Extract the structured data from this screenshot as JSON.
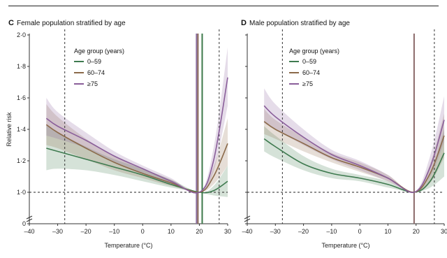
{
  "chart_data": [
    {
      "id": "C",
      "type": "line",
      "panel_letter": "C",
      "title": "Female population stratified by age",
      "xlabel": "Temperature (°C)",
      "ylabel": "Relative risk",
      "xlim": [
        -40,
        30
      ],
      "ylim": [
        0,
        2.0
      ],
      "xticks": [
        -40,
        -30,
        -20,
        -10,
        0,
        10,
        20,
        30
      ],
      "yticks": [
        0,
        1.0,
        1.2,
        1.4,
        1.6,
        1.8,
        2.0
      ],
      "ytick_labels": [
        "0",
        "1·0",
        "1·2",
        "1·4",
        "1·6",
        "1·8",
        "2·0"
      ],
      "axis_break": true,
      "reference_line_y": 1.0,
      "dashed_vlines": [
        -27.5,
        27
      ],
      "solid_vlines": [
        {
          "x": 19,
          "color": "#8a6ea0"
        },
        {
          "x": 19.5,
          "color": "#8b6a5a"
        },
        {
          "x": 21,
          "color": "#3d7a4a"
        }
      ],
      "legend": {
        "title": "Age group (years)",
        "position": "top-left"
      },
      "series": [
        {
          "name": "0–59",
          "color": "#3e7a4f",
          "x": [
            -34,
            -30,
            -20,
            -10,
            0,
            10,
            20,
            25,
            30
          ],
          "values": [
            1.28,
            1.26,
            1.21,
            1.16,
            1.11,
            1.05,
            1.0,
            1.01,
            1.07
          ],
          "lower": [
            1.14,
            1.15,
            1.14,
            1.11,
            1.07,
            1.03,
            1.0,
            0.98,
            0.97
          ],
          "upper": [
            1.43,
            1.38,
            1.29,
            1.21,
            1.15,
            1.08,
            1.0,
            1.04,
            1.17
          ]
        },
        {
          "name": "60–74",
          "color": "#8b6a4a",
          "x": [
            -34,
            -30,
            -20,
            -10,
            0,
            10,
            20,
            25,
            30
          ],
          "values": [
            1.43,
            1.38,
            1.28,
            1.19,
            1.12,
            1.06,
            1.0,
            1.1,
            1.31
          ],
          "lower": [
            1.3,
            1.28,
            1.21,
            1.14,
            1.09,
            1.04,
            1.0,
            1.05,
            1.17
          ],
          "upper": [
            1.56,
            1.48,
            1.34,
            1.23,
            1.15,
            1.08,
            1.0,
            1.16,
            1.47
          ]
        },
        {
          "name": "≥75",
          "color": "#8a5e9a",
          "x": [
            -34,
            -30,
            -20,
            -10,
            0,
            10,
            20,
            25,
            30
          ],
          "values": [
            1.47,
            1.42,
            1.33,
            1.23,
            1.15,
            1.07,
            1.0,
            1.2,
            1.73
          ],
          "lower": [
            1.36,
            1.34,
            1.28,
            1.19,
            1.12,
            1.05,
            1.0,
            1.13,
            1.55
          ],
          "upper": [
            1.6,
            1.51,
            1.38,
            1.26,
            1.17,
            1.09,
            1.0,
            1.28,
            1.92
          ]
        }
      ]
    },
    {
      "id": "D",
      "type": "line",
      "panel_letter": "D",
      "title": "Male population stratified by age",
      "xlabel": "Temperature (°C)",
      "ylabel": "",
      "xlim": [
        -40,
        30
      ],
      "ylim": [
        0,
        2.0
      ],
      "xticks": [
        -40,
        -30,
        -20,
        -10,
        0,
        10,
        20,
        30
      ],
      "yticks": [
        0,
        1.0,
        1.2,
        1.4,
        1.6,
        1.8,
        2.0
      ],
      "ytick_labels": [
        "",
        "",
        "",
        "",
        "",
        "",
        ""
      ],
      "axis_break": true,
      "reference_line_y": 1.0,
      "dashed_vlines": [
        -27.5,
        26.5
      ],
      "solid_vlines": [
        {
          "x": 19.3,
          "color": "#8b6a6a"
        }
      ],
      "legend": {
        "title": "Age group (years)",
        "position": "top-left"
      },
      "series": [
        {
          "name": "0–59",
          "color": "#3e7a4f",
          "x": [
            -34,
            -30,
            -20,
            -10,
            0,
            10,
            19.3,
            25,
            30
          ],
          "values": [
            1.34,
            1.29,
            1.18,
            1.12,
            1.09,
            1.05,
            1.0,
            1.07,
            1.25
          ],
          "lower": [
            1.26,
            1.22,
            1.14,
            1.09,
            1.07,
            1.03,
            1.0,
            1.03,
            1.1
          ],
          "upper": [
            1.42,
            1.36,
            1.23,
            1.15,
            1.11,
            1.07,
            1.0,
            1.11,
            1.4
          ]
        },
        {
          "name": "60–74",
          "color": "#8b6a4a",
          "x": [
            -34,
            -30,
            -20,
            -10,
            0,
            10,
            19.3,
            25,
            30
          ],
          "values": [
            1.45,
            1.4,
            1.31,
            1.22,
            1.16,
            1.09,
            1.0,
            1.12,
            1.36
          ],
          "lower": [
            1.37,
            1.34,
            1.26,
            1.19,
            1.13,
            1.07,
            1.0,
            1.06,
            1.22
          ],
          "upper": [
            1.53,
            1.46,
            1.35,
            1.25,
            1.19,
            1.11,
            1.0,
            1.18,
            1.5
          ]
        },
        {
          "name": "≥75",
          "color": "#8a5e9a",
          "x": [
            -34,
            -30,
            -20,
            -10,
            0,
            10,
            19.3,
            25,
            30
          ],
          "values": [
            1.55,
            1.48,
            1.35,
            1.24,
            1.17,
            1.09,
            1.0,
            1.16,
            1.46
          ],
          "lower": [
            1.44,
            1.4,
            1.3,
            1.21,
            1.14,
            1.07,
            1.0,
            1.1,
            1.32
          ],
          "upper": [
            1.66,
            1.56,
            1.4,
            1.27,
            1.2,
            1.11,
            1.0,
            1.23,
            1.61
          ]
        }
      ]
    }
  ]
}
